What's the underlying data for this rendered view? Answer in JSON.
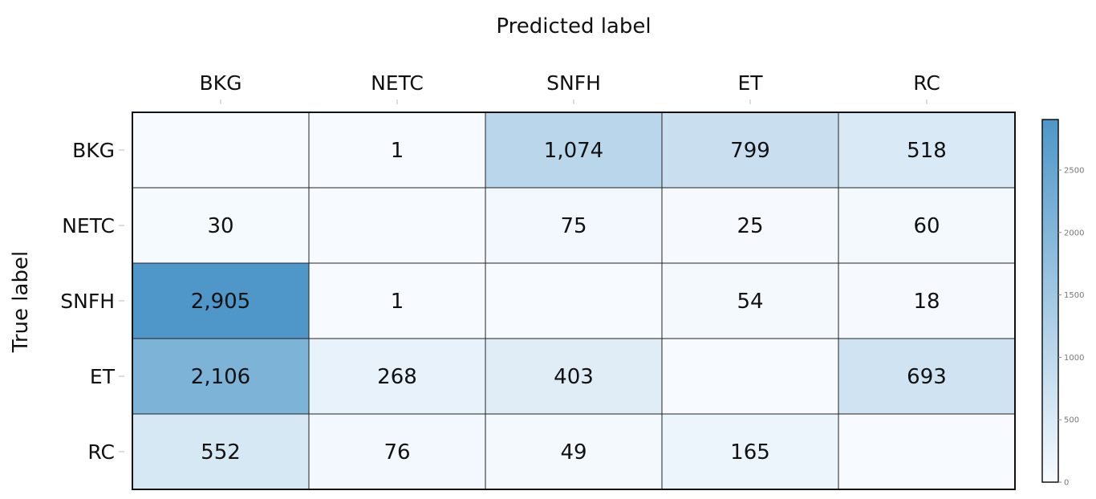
{
  "chart_data": {
    "type": "heatmap",
    "title": "",
    "xlabel": "Predicted label",
    "ylabel": "True label",
    "x_categories": [
      "BKG",
      "NETC",
      "SNFH",
      "ET",
      "RC"
    ],
    "y_categories": [
      "BKG",
      "NETC",
      "SNFH",
      "ET",
      "RC"
    ],
    "values": [
      [
        null,
        1,
        1074,
        799,
        518
      ],
      [
        30,
        null,
        75,
        25,
        60
      ],
      [
        2905,
        1,
        null,
        54,
        18
      ],
      [
        2106,
        268,
        403,
        null,
        693
      ],
      [
        552,
        76,
        49,
        165,
        null
      ]
    ],
    "cell_labels": [
      [
        "",
        "1",
        "1,074",
        "799",
        "518"
      ],
      [
        "30",
        "",
        "75",
        "25",
        "60"
      ],
      [
        "2,905",
        "1",
        "",
        "54",
        "18"
      ],
      [
        "2,106",
        "268",
        "403",
        "",
        "693"
      ],
      [
        "552",
        "76",
        "49",
        "165",
        ""
      ]
    ],
    "colorbar": {
      "min": 0,
      "max": 2905,
      "ticks": [
        0,
        500,
        1000,
        1500,
        2000,
        2500
      ],
      "tick_labels": [
        "0",
        "500",
        "1000",
        "1500",
        "2000",
        "2500"
      ],
      "color_low": "#f7fbff",
      "color_high": "#4e97c8"
    },
    "grid": true,
    "x_axis_position": "top",
    "colorbar_position": "right"
  }
}
